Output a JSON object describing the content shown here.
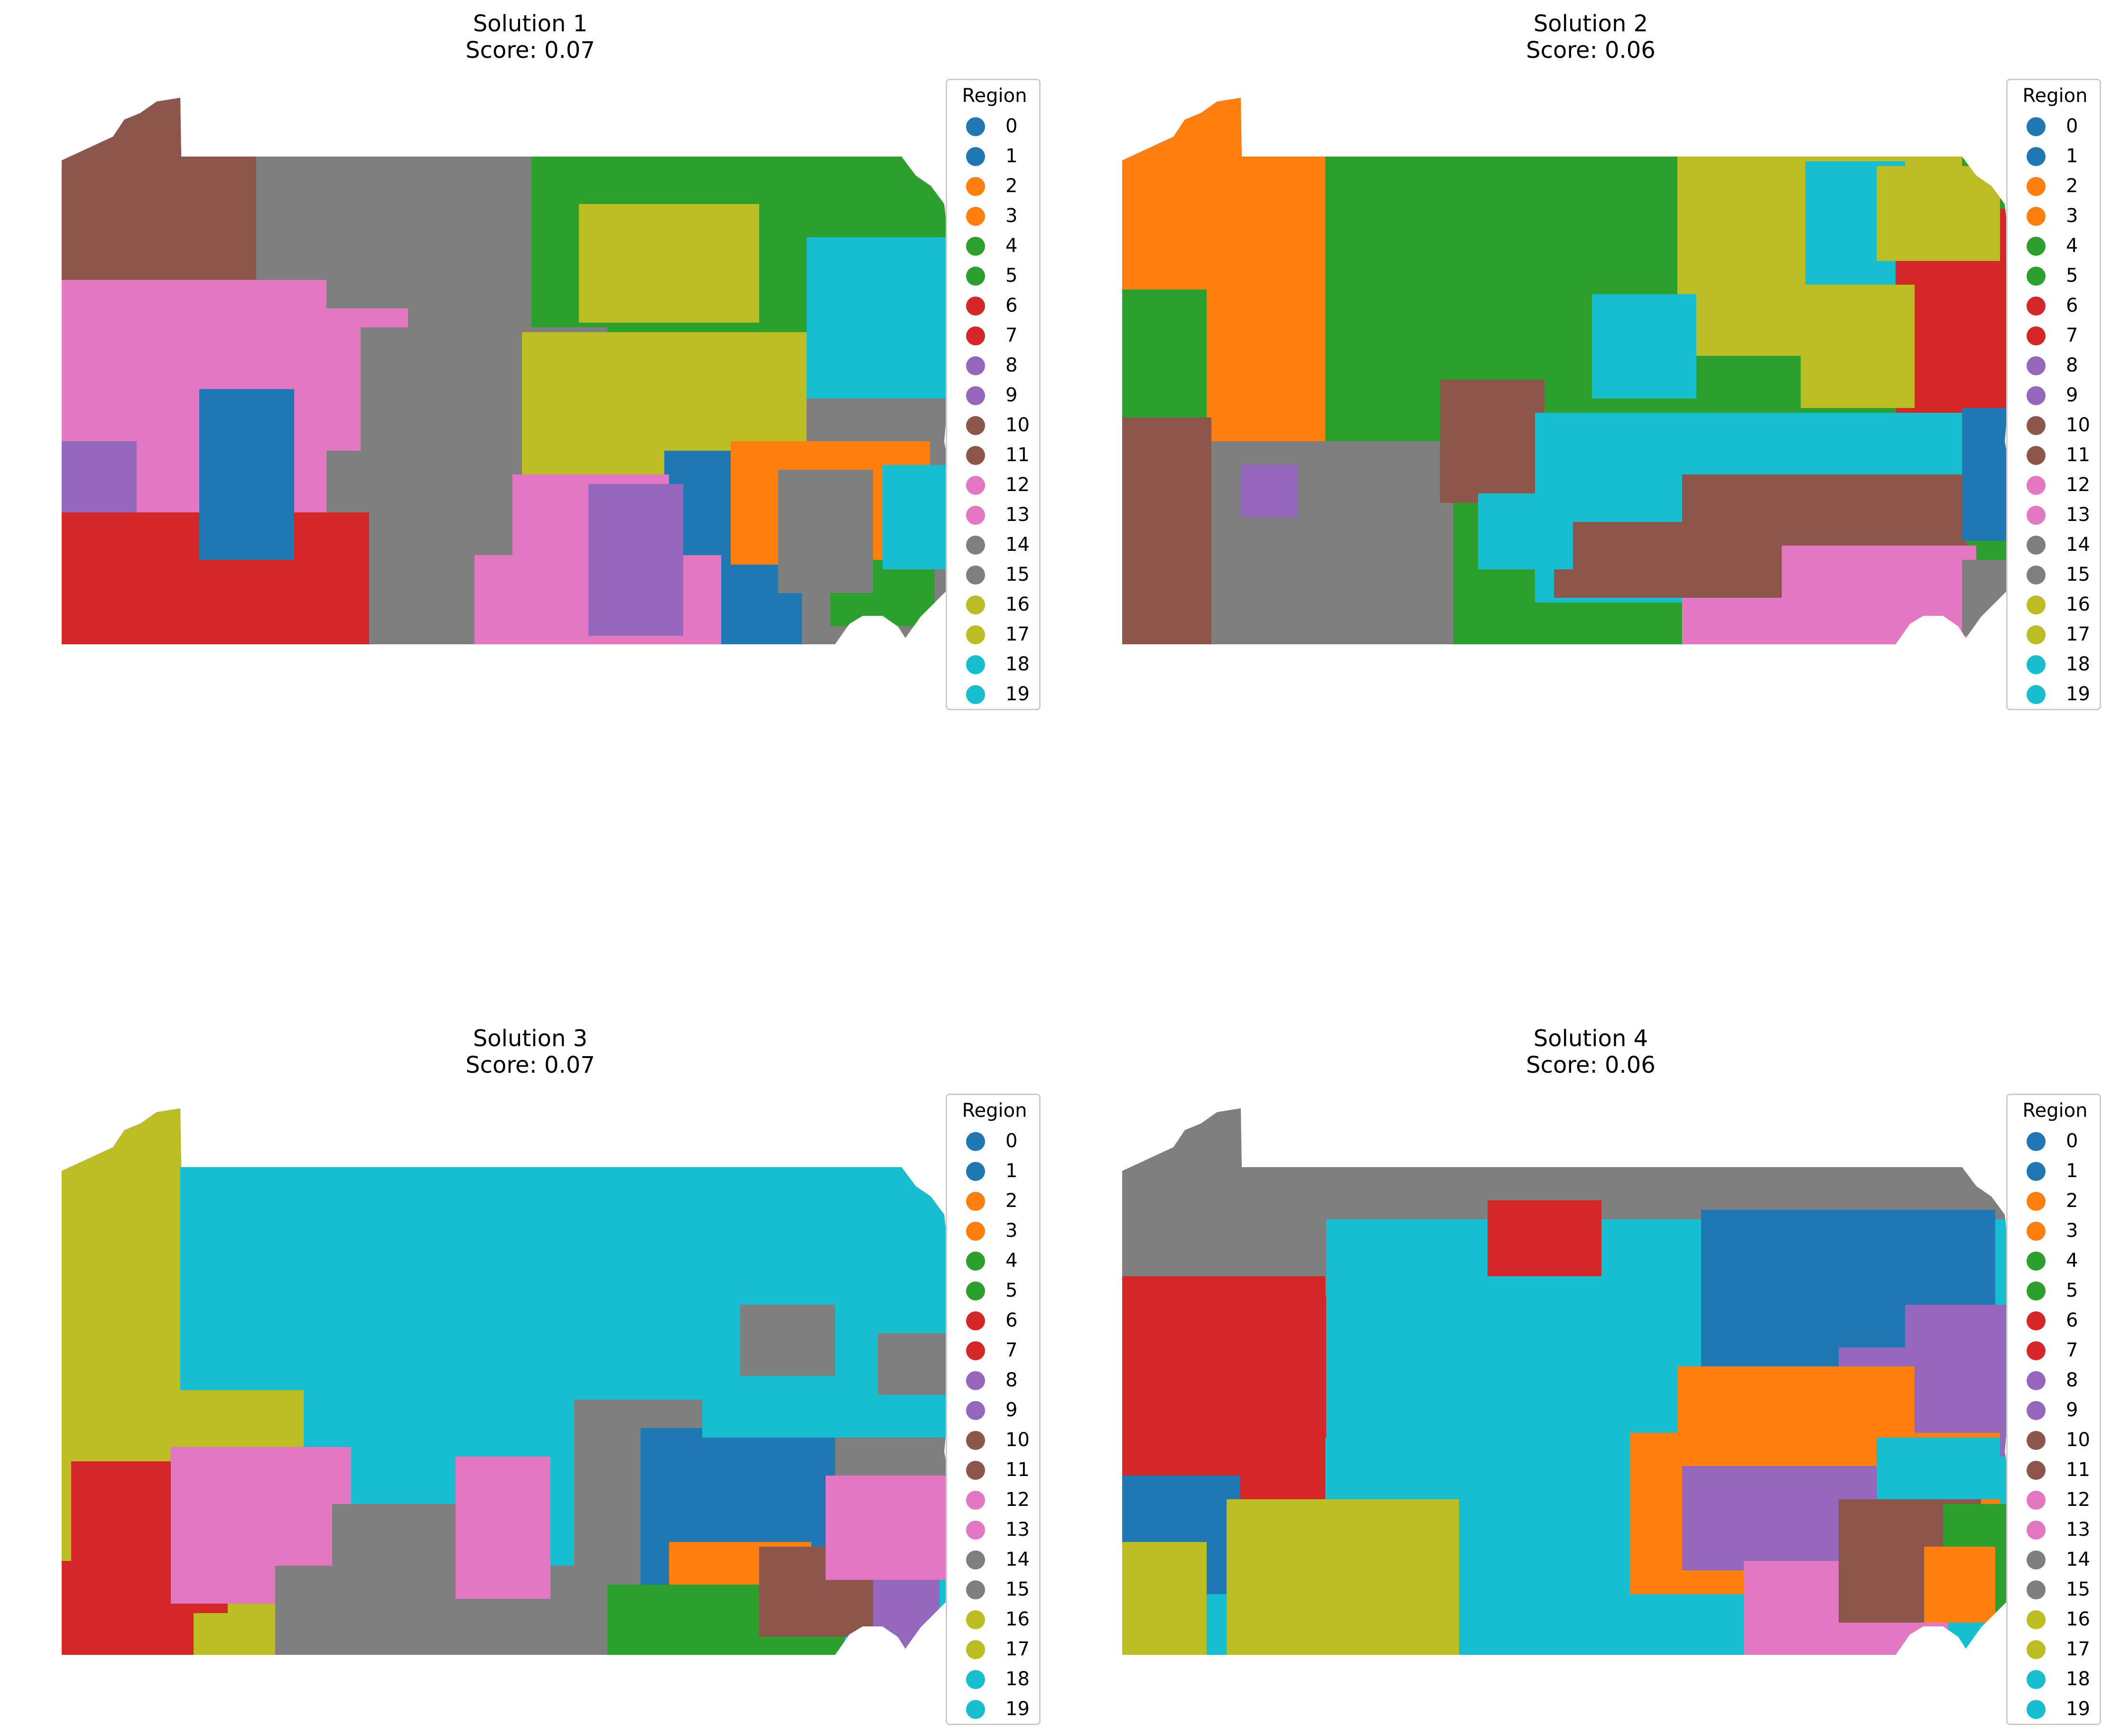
{
  "panels": [
    {
      "title": "Solution 1",
      "score": "Score: 0.07",
      "regions": [
        {
          "color": "#8c564b",
          "name": "region-10-11"
        },
        {
          "color": "#7f7f7f",
          "name": "region-14-15"
        },
        {
          "color": "#2ca02c",
          "name": "region-4-5"
        },
        {
          "color": "#bcbd22",
          "name": "region-16-17"
        },
        {
          "color": "#17becf",
          "name": "region-18-19"
        },
        {
          "color": "#e377c2",
          "name": "region-12-13"
        },
        {
          "color": "#1f77b4",
          "name": "region-0-1"
        },
        {
          "color": "#9467bd",
          "name": "region-8-9"
        },
        {
          "color": "#d62728",
          "name": "region-6-7"
        },
        {
          "color": "#ff7f0e",
          "name": "region-2-3"
        }
      ]
    },
    {
      "title": "Solution 2",
      "score": "Score: 0.06",
      "regions": [
        {
          "color": "#ff7f0e",
          "name": "region-2-3"
        },
        {
          "color": "#2ca02c",
          "name": "region-4-5"
        },
        {
          "color": "#bcbd22",
          "name": "region-16-17"
        },
        {
          "color": "#17becf",
          "name": "region-18-19"
        },
        {
          "color": "#d62728",
          "name": "region-6-7"
        },
        {
          "color": "#7f7f7f",
          "name": "region-14-15"
        },
        {
          "color": "#8c564b",
          "name": "region-10-11"
        },
        {
          "color": "#e377c2",
          "name": "region-12-13"
        },
        {
          "color": "#1f77b4",
          "name": "region-0-1"
        },
        {
          "color": "#9467bd",
          "name": "region-8-9"
        }
      ]
    },
    {
      "title": "Solution 3",
      "score": "Score: 0.07",
      "regions": [
        {
          "color": "#bcbd22",
          "name": "region-16-17"
        },
        {
          "color": "#17becf",
          "name": "region-18-19"
        },
        {
          "color": "#d62728",
          "name": "region-6-7"
        },
        {
          "color": "#e377c2",
          "name": "region-12-13"
        },
        {
          "color": "#7f7f7f",
          "name": "region-14-15"
        },
        {
          "color": "#1f77b4",
          "name": "region-0-1"
        },
        {
          "color": "#ff7f0e",
          "name": "region-2-3"
        },
        {
          "color": "#2ca02c",
          "name": "region-4-5"
        },
        {
          "color": "#8c564b",
          "name": "region-10-11"
        },
        {
          "color": "#9467bd",
          "name": "region-8-9"
        }
      ]
    },
    {
      "title": "Solution 4",
      "score": "Score: 0.06",
      "regions": [
        {
          "color": "#7f7f7f",
          "name": "region-14-15"
        },
        {
          "color": "#d62728",
          "name": "region-6-7"
        },
        {
          "color": "#17becf",
          "name": "region-18-19"
        },
        {
          "color": "#1f77b4",
          "name": "region-0-1"
        },
        {
          "color": "#9467bd",
          "name": "region-8-9"
        },
        {
          "color": "#ff7f0e",
          "name": "region-2-3"
        },
        {
          "color": "#bcbd22",
          "name": "region-16-17"
        },
        {
          "color": "#e377c2",
          "name": "region-12-13"
        },
        {
          "color": "#8c564b",
          "name": "region-10-11"
        },
        {
          "color": "#2ca02c",
          "name": "region-4-5"
        }
      ]
    }
  ],
  "legend": {
    "title": "Region",
    "items": [
      {
        "label": "0",
        "color": "#1f77b4"
      },
      {
        "label": "1",
        "color": "#1f77b4"
      },
      {
        "label": "2",
        "color": "#ff7f0e"
      },
      {
        "label": "3",
        "color": "#ff7f0e"
      },
      {
        "label": "4",
        "color": "#2ca02c"
      },
      {
        "label": "5",
        "color": "#2ca02c"
      },
      {
        "label": "6",
        "color": "#d62728"
      },
      {
        "label": "7",
        "color": "#d62728"
      },
      {
        "label": "8",
        "color": "#9467bd"
      },
      {
        "label": "9",
        "color": "#9467bd"
      },
      {
        "label": "10",
        "color": "#8c564b"
      },
      {
        "label": "11",
        "color": "#8c564b"
      },
      {
        "label": "12",
        "color": "#e377c2"
      },
      {
        "label": "13",
        "color": "#e377c2"
      },
      {
        "label": "14",
        "color": "#7f7f7f"
      },
      {
        "label": "15",
        "color": "#7f7f7f"
      },
      {
        "label": "16",
        "color": "#bcbd22"
      },
      {
        "label": "17",
        "color": "#bcbd22"
      },
      {
        "label": "18",
        "color": "#17becf"
      },
      {
        "label": "19",
        "color": "#17becf"
      }
    ]
  }
}
